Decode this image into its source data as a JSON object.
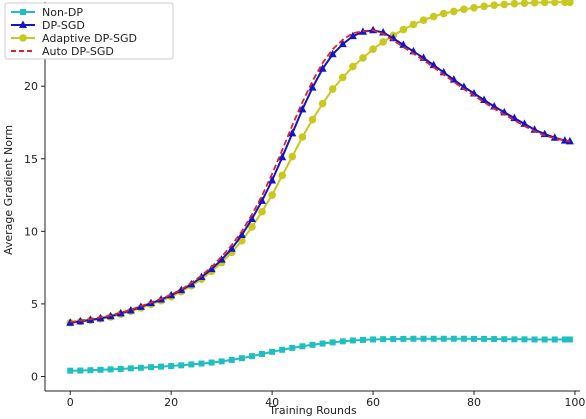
{
  "chart_data": {
    "type": "line",
    "title": "",
    "xlabel": "Training Rounds",
    "ylabel": "Average Gradient Norm",
    "xlim": [
      -5,
      101
    ],
    "ylim": [
      -1,
      25.8
    ],
    "xticks": [
      0,
      20,
      40,
      60,
      80,
      100
    ],
    "yticks": [
      0,
      5,
      10,
      15,
      20,
      25
    ],
    "grid": false,
    "legend_position": "top-left",
    "x": [
      0,
      2,
      4,
      6,
      8,
      10,
      12,
      14,
      16,
      18,
      20,
      22,
      24,
      26,
      28,
      30,
      32,
      34,
      36,
      38,
      40,
      42,
      44,
      46,
      48,
      50,
      52,
      54,
      56,
      58,
      60,
      62,
      64,
      66,
      68,
      70,
      72,
      74,
      76,
      78,
      80,
      82,
      84,
      86,
      88,
      90,
      92,
      94,
      96,
      98,
      99
    ],
    "series": [
      {
        "name": "Non-DP",
        "color": "#1fbfbf",
        "marker": "square",
        "values": [
          0.4,
          0.41,
          0.43,
          0.46,
          0.49,
          0.52,
          0.56,
          0.6,
          0.64,
          0.68,
          0.72,
          0.77,
          0.83,
          0.89,
          0.96,
          1.04,
          1.14,
          1.26,
          1.4,
          1.55,
          1.7,
          1.84,
          1.97,
          2.08,
          2.18,
          2.27,
          2.35,
          2.42,
          2.48,
          2.52,
          2.55,
          2.57,
          2.58,
          2.59,
          2.6,
          2.6,
          2.6,
          2.6,
          2.6,
          2.6,
          2.59,
          2.59,
          2.58,
          2.57,
          2.56,
          2.56,
          2.55,
          2.55,
          2.55,
          2.55,
          2.55
        ]
      },
      {
        "name": "DP-SGD",
        "color": "#1515c8",
        "marker": "triangle",
        "values": [
          3.7,
          3.8,
          3.9,
          4.0,
          4.15,
          4.35,
          4.55,
          4.8,
          5.05,
          5.3,
          5.6,
          5.95,
          6.35,
          6.85,
          7.4,
          8.05,
          8.8,
          9.75,
          10.85,
          12.1,
          13.5,
          15.1,
          16.75,
          18.4,
          19.9,
          21.2,
          22.2,
          22.9,
          23.45,
          23.75,
          23.85,
          23.7,
          23.3,
          22.85,
          22.4,
          21.95,
          21.45,
          20.95,
          20.45,
          19.95,
          19.5,
          19.05,
          18.6,
          18.2,
          17.8,
          17.4,
          17.0,
          16.7,
          16.45,
          16.25,
          16.2
        ]
      },
      {
        "name": "Adaptive DP-SGD",
        "color": "#c8c81e",
        "marker": "circle",
        "values": [
          3.7,
          3.78,
          3.87,
          3.97,
          4.1,
          4.3,
          4.5,
          4.72,
          4.97,
          5.22,
          5.5,
          5.85,
          6.25,
          6.7,
          7.25,
          7.85,
          8.55,
          9.35,
          10.3,
          11.35,
          12.5,
          13.85,
          15.15,
          16.5,
          17.7,
          18.8,
          19.8,
          20.6,
          21.35,
          21.95,
          22.55,
          23.05,
          23.5,
          23.9,
          24.25,
          24.55,
          24.8,
          25.0,
          25.15,
          25.3,
          25.4,
          25.5,
          25.58,
          25.63,
          25.68,
          25.72,
          25.75,
          25.77,
          25.78,
          25.78,
          25.78
        ]
      },
      {
        "name": "Auto DP-SGD",
        "color": "#e02424",
        "marker": "none",
        "dashed": true,
        "values": [
          3.75,
          3.85,
          3.95,
          4.07,
          4.2,
          4.4,
          4.6,
          4.85,
          5.1,
          5.35,
          5.65,
          6.0,
          6.45,
          6.95,
          7.55,
          8.25,
          9.05,
          10.0,
          11.15,
          12.45,
          13.95,
          15.6,
          17.3,
          18.9,
          20.35,
          21.6,
          22.55,
          23.2,
          23.65,
          23.8,
          23.85,
          23.6,
          23.15,
          22.7,
          22.25,
          21.8,
          21.3,
          20.8,
          20.3,
          19.8,
          19.35,
          18.9,
          18.45,
          18.05,
          17.65,
          17.25,
          16.9,
          16.6,
          16.4,
          16.25,
          16.2
        ]
      }
    ]
  }
}
